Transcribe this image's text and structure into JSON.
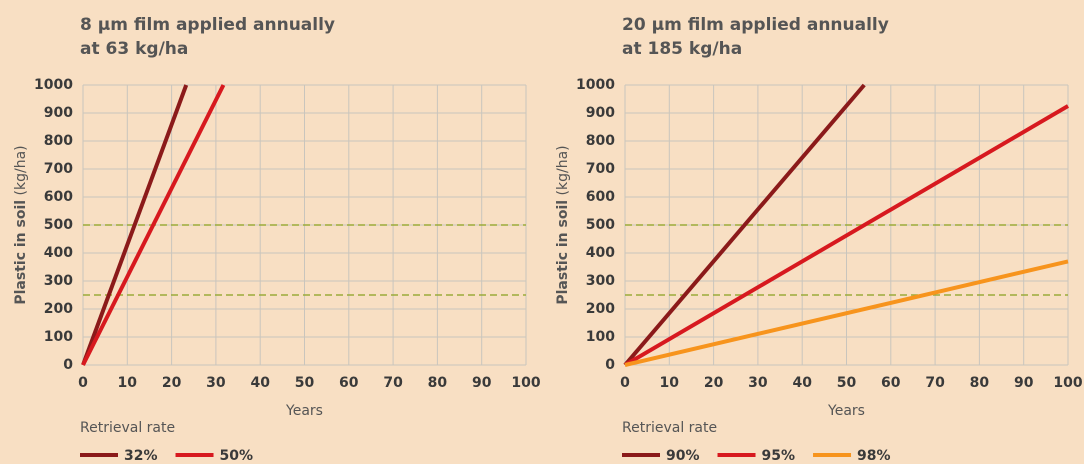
{
  "chart_data": [
    {
      "type": "line",
      "title": [
        "8 µm film applied annually",
        "at 63 kg/ha"
      ],
      "xlabel": "Years",
      "ylabel": "Plastic in soil",
      "ylabel_unit": "(kg/ha)",
      "xlim": [
        0,
        100
      ],
      "ylim": [
        0,
        1000
      ],
      "xticks": [
        0,
        10,
        20,
        30,
        40,
        50,
        60,
        70,
        80,
        90,
        100
      ],
      "yticks": [
        0,
        100,
        200,
        300,
        400,
        500,
        600,
        700,
        800,
        900,
        1000
      ],
      "grid": true,
      "hlines": [
        250,
        500
      ],
      "hline_color": "#9aab3a",
      "legend_title": "Retrieval rate",
      "legend": "bottom",
      "series": [
        {
          "name": "32%",
          "color": "#8b1a1a",
          "x": [
            0,
            23.3
          ],
          "values": [
            0,
            1000
          ]
        },
        {
          "name": "50%",
          "color": "#d7191f",
          "x": [
            0,
            31.7
          ],
          "values": [
            0,
            1000
          ]
        }
      ]
    },
    {
      "type": "line",
      "title": [
        "20 µm film applied annually",
        "at 185 kg/ha"
      ],
      "xlabel": "Years",
      "ylabel": "Plastic in soil",
      "ylabel_unit": "(kg/ha)",
      "xlim": [
        0,
        100
      ],
      "ylim": [
        0,
        1000
      ],
      "xticks": [
        0,
        10,
        20,
        30,
        40,
        50,
        60,
        70,
        80,
        90,
        100
      ],
      "yticks": [
        0,
        100,
        200,
        300,
        400,
        500,
        600,
        700,
        800,
        900,
        1000
      ],
      "grid": true,
      "hlines": [
        250,
        500
      ],
      "hline_color": "#9aab3a",
      "legend_title": "Retrieval rate",
      "legend": "bottom",
      "series": [
        {
          "name": "90%",
          "color": "#8b1a1a",
          "x": [
            0,
            54
          ],
          "values": [
            0,
            1000
          ]
        },
        {
          "name": "95%",
          "color": "#d7191f",
          "x": [
            0,
            100
          ],
          "values": [
            0,
            925
          ]
        },
        {
          "name": "98%",
          "color": "#f7941d",
          "x": [
            0,
            100
          ],
          "values": [
            0,
            370
          ]
        }
      ]
    }
  ]
}
